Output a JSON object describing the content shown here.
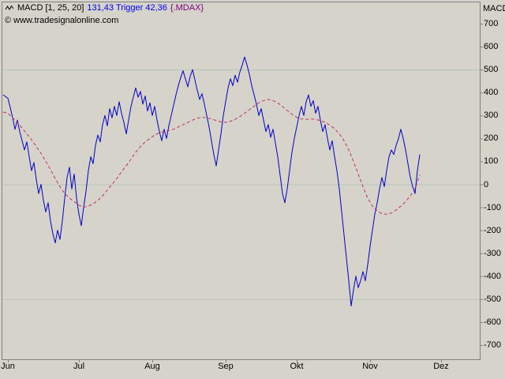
{
  "window": {
    "pane_title": "MACD"
  },
  "legend": {
    "indicator": "MACD [1, 25, 20]",
    "values": "131,43 Trigger 42,36",
    "symbol": "{.MDAX}",
    "copyright": "© www.tradesignalonline.com"
  },
  "colors": {
    "background": "#d6d3ca",
    "axis": "#808080",
    "grid": "#b6c6b6",
    "text": "#000000",
    "legend_values": "#0000ee",
    "legend_symbol": "#7a007a",
    "macd_line": "#0000c8",
    "trigger_line": "#c22f64"
  },
  "chart_data": {
    "type": "line",
    "title": "MACD [1, 25, 20] {.MDAX}",
    "ylabel_side": "right",
    "ylim": [
      -700,
      700
    ],
    "y_ticks": [
      700,
      600,
      500,
      400,
      300,
      200,
      100,
      0,
      -100,
      -200,
      -300,
      -400,
      -500,
      -600,
      -700
    ],
    "grid_levels": [
      500,
      0,
      -500
    ],
    "x_unit": "days since Jun 1",
    "x_ticks": [
      {
        "label": "Jun",
        "day": 0
      },
      {
        "label": "Jul",
        "day": 30
      },
      {
        "label": "Aug",
        "day": 61
      },
      {
        "label": "Sep",
        "day": 92
      },
      {
        "label": "Okt",
        "day": 122
      },
      {
        "label": "Nov",
        "day": 153
      },
      {
        "label": "Dez",
        "day": 183
      }
    ],
    "series": [
      {
        "name": "MACD",
        "style": "solid",
        "color_key": "macd_line",
        "last_value": "131,43",
        "points": [
          [
            -2,
            390
          ],
          [
            0,
            375
          ],
          [
            1,
            335
          ],
          [
            2,
            290
          ],
          [
            3,
            240
          ],
          [
            4,
            280
          ],
          [
            5,
            230
          ],
          [
            6,
            190
          ],
          [
            7,
            150
          ],
          [
            8,
            185
          ],
          [
            9,
            120
          ],
          [
            10,
            60
          ],
          [
            11,
            95
          ],
          [
            12,
            20
          ],
          [
            13,
            -40
          ],
          [
            14,
            0
          ],
          [
            15,
            -70
          ],
          [
            16,
            -120
          ],
          [
            17,
            -80
          ],
          [
            18,
            -160
          ],
          [
            19,
            -215
          ],
          [
            20,
            -255
          ],
          [
            21,
            -200
          ],
          [
            22,
            -240
          ],
          [
            23,
            -160
          ],
          [
            24,
            -60
          ],
          [
            25,
            30
          ],
          [
            26,
            75
          ],
          [
            27,
            -20
          ],
          [
            28,
            45
          ],
          [
            29,
            -60
          ],
          [
            30,
            -130
          ],
          [
            31,
            -180
          ],
          [
            32,
            -100
          ],
          [
            33,
            -30
          ],
          [
            34,
            60
          ],
          [
            35,
            120
          ],
          [
            36,
            90
          ],
          [
            37,
            170
          ],
          [
            38,
            215
          ],
          [
            39,
            185
          ],
          [
            40,
            260
          ],
          [
            41,
            300
          ],
          [
            42,
            255
          ],
          [
            43,
            330
          ],
          [
            44,
            290
          ],
          [
            45,
            340
          ],
          [
            46,
            300
          ],
          [
            47,
            360
          ],
          [
            48,
            310
          ],
          [
            49,
            270
          ],
          [
            50,
            220
          ],
          [
            51,
            280
          ],
          [
            52,
            340
          ],
          [
            53,
            380
          ],
          [
            54,
            420
          ],
          [
            55,
            380
          ],
          [
            56,
            405
          ],
          [
            57,
            350
          ],
          [
            58,
            385
          ],
          [
            59,
            320
          ],
          [
            60,
            355
          ],
          [
            61,
            300
          ],
          [
            62,
            340
          ],
          [
            63,
            280
          ],
          [
            64,
            230
          ],
          [
            65,
            190
          ],
          [
            66,
            240
          ],
          [
            67,
            200
          ],
          [
            68,
            255
          ],
          [
            69,
            300
          ],
          [
            70,
            345
          ],
          [
            71,
            390
          ],
          [
            72,
            430
          ],
          [
            73,
            465
          ],
          [
            74,
            495
          ],
          [
            75,
            460
          ],
          [
            76,
            425
          ],
          [
            77,
            470
          ],
          [
            78,
            500
          ],
          [
            79,
            455
          ],
          [
            80,
            410
          ],
          [
            81,
            370
          ],
          [
            82,
            395
          ],
          [
            83,
            350
          ],
          [
            84,
            300
          ],
          [
            85,
            250
          ],
          [
            86,
            190
          ],
          [
            87,
            130
          ],
          [
            88,
            80
          ],
          [
            89,
            150
          ],
          [
            90,
            220
          ],
          [
            91,
            300
          ],
          [
            92,
            360
          ],
          [
            93,
            420
          ],
          [
            94,
            460
          ],
          [
            95,
            430
          ],
          [
            96,
            475
          ],
          [
            97,
            445
          ],
          [
            98,
            490
          ],
          [
            99,
            520
          ],
          [
            100,
            555
          ],
          [
            101,
            520
          ],
          [
            102,
            480
          ],
          [
            103,
            430
          ],
          [
            104,
            390
          ],
          [
            105,
            350
          ],
          [
            106,
            300
          ],
          [
            107,
            330
          ],
          [
            108,
            280
          ],
          [
            109,
            230
          ],
          [
            110,
            260
          ],
          [
            111,
            205
          ],
          [
            112,
            240
          ],
          [
            113,
            180
          ],
          [
            114,
            120
          ],
          [
            115,
            40
          ],
          [
            116,
            -40
          ],
          [
            117,
            -80
          ],
          [
            118,
            -20
          ],
          [
            119,
            60
          ],
          [
            120,
            140
          ],
          [
            121,
            200
          ],
          [
            122,
            250
          ],
          [
            123,
            300
          ],
          [
            124,
            340
          ],
          [
            125,
            300
          ],
          [
            126,
            360
          ],
          [
            127,
            390
          ],
          [
            128,
            340
          ],
          [
            129,
            365
          ],
          [
            130,
            310
          ],
          [
            131,
            340
          ],
          [
            132,
            280
          ],
          [
            133,
            230
          ],
          [
            134,
            260
          ],
          [
            135,
            200
          ],
          [
            136,
            150
          ],
          [
            137,
            190
          ],
          [
            138,
            120
          ],
          [
            139,
            60
          ],
          [
            140,
            -20
          ],
          [
            141,
            -120
          ],
          [
            142,
            -220
          ],
          [
            143,
            -320
          ],
          [
            144,
            -420
          ],
          [
            145,
            -530
          ],
          [
            146,
            -460
          ],
          [
            147,
            -400
          ],
          [
            148,
            -450
          ],
          [
            149,
            -420
          ],
          [
            150,
            -380
          ],
          [
            151,
            -420
          ],
          [
            152,
            -350
          ],
          [
            153,
            -270
          ],
          [
            154,
            -200
          ],
          [
            155,
            -130
          ],
          [
            156,
            -80
          ],
          [
            157,
            -20
          ],
          [
            158,
            30
          ],
          [
            159,
            -10
          ],
          [
            160,
            60
          ],
          [
            161,
            120
          ],
          [
            162,
            150
          ],
          [
            163,
            130
          ],
          [
            164,
            170
          ],
          [
            165,
            200
          ],
          [
            166,
            240
          ],
          [
            167,
            200
          ],
          [
            168,
            150
          ],
          [
            169,
            90
          ],
          [
            170,
            30
          ],
          [
            171,
            -10
          ],
          [
            172,
            -40
          ],
          [
            173,
            60
          ],
          [
            174,
            130
          ]
        ]
      },
      {
        "name": "Trigger",
        "style": "dashed",
        "color_key": "trigger_line",
        "last_value": "42,36",
        "points": [
          [
            -2,
            315
          ],
          [
            0,
            310
          ],
          [
            2,
            290
          ],
          [
            4,
            270
          ],
          [
            6,
            245
          ],
          [
            8,
            220
          ],
          [
            10,
            195
          ],
          [
            12,
            165
          ],
          [
            14,
            135
          ],
          [
            16,
            100
          ],
          [
            18,
            65
          ],
          [
            20,
            25
          ],
          [
            22,
            -10
          ],
          [
            24,
            -40
          ],
          [
            26,
            -60
          ],
          [
            28,
            -75
          ],
          [
            30,
            -90
          ],
          [
            32,
            -100
          ],
          [
            34,
            -95
          ],
          [
            36,
            -85
          ],
          [
            38,
            -70
          ],
          [
            40,
            -50
          ],
          [
            42,
            -25
          ],
          [
            44,
            0
          ],
          [
            46,
            25
          ],
          [
            48,
            55
          ],
          [
            50,
            80
          ],
          [
            52,
            110
          ],
          [
            54,
            140
          ],
          [
            56,
            165
          ],
          [
            58,
            185
          ],
          [
            60,
            200
          ],
          [
            62,
            215
          ],
          [
            64,
            225
          ],
          [
            66,
            230
          ],
          [
            68,
            235
          ],
          [
            70,
            240
          ],
          [
            72,
            250
          ],
          [
            74,
            260
          ],
          [
            76,
            270
          ],
          [
            78,
            280
          ],
          [
            80,
            288
          ],
          [
            82,
            292
          ],
          [
            84,
            290
          ],
          [
            86,
            285
          ],
          [
            88,
            278
          ],
          [
            90,
            272
          ],
          [
            92,
            270
          ],
          [
            94,
            275
          ],
          [
            96,
            283
          ],
          [
            98,
            295
          ],
          [
            100,
            310
          ],
          [
            102,
            325
          ],
          [
            104,
            340
          ],
          [
            106,
            355
          ],
          [
            108,
            365
          ],
          [
            110,
            370
          ],
          [
            112,
            365
          ],
          [
            114,
            355
          ],
          [
            116,
            340
          ],
          [
            118,
            322
          ],
          [
            120,
            305
          ],
          [
            122,
            292
          ],
          [
            124,
            285
          ],
          [
            126,
            283
          ],
          [
            128,
            285
          ],
          [
            130,
            283
          ],
          [
            132,
            278
          ],
          [
            134,
            270
          ],
          [
            136,
            258
          ],
          [
            138,
            242
          ],
          [
            140,
            220
          ],
          [
            142,
            190
          ],
          [
            144,
            150
          ],
          [
            146,
            100
          ],
          [
            148,
            45
          ],
          [
            150,
            -10
          ],
          [
            152,
            -60
          ],
          [
            154,
            -95
          ],
          [
            156,
            -115
          ],
          [
            158,
            -128
          ],
          [
            160,
            -130
          ],
          [
            162,
            -125
          ],
          [
            164,
            -112
          ],
          [
            166,
            -95
          ],
          [
            168,
            -75
          ],
          [
            170,
            -50
          ],
          [
            172,
            -20
          ],
          [
            174,
            42
          ]
        ]
      }
    ]
  }
}
